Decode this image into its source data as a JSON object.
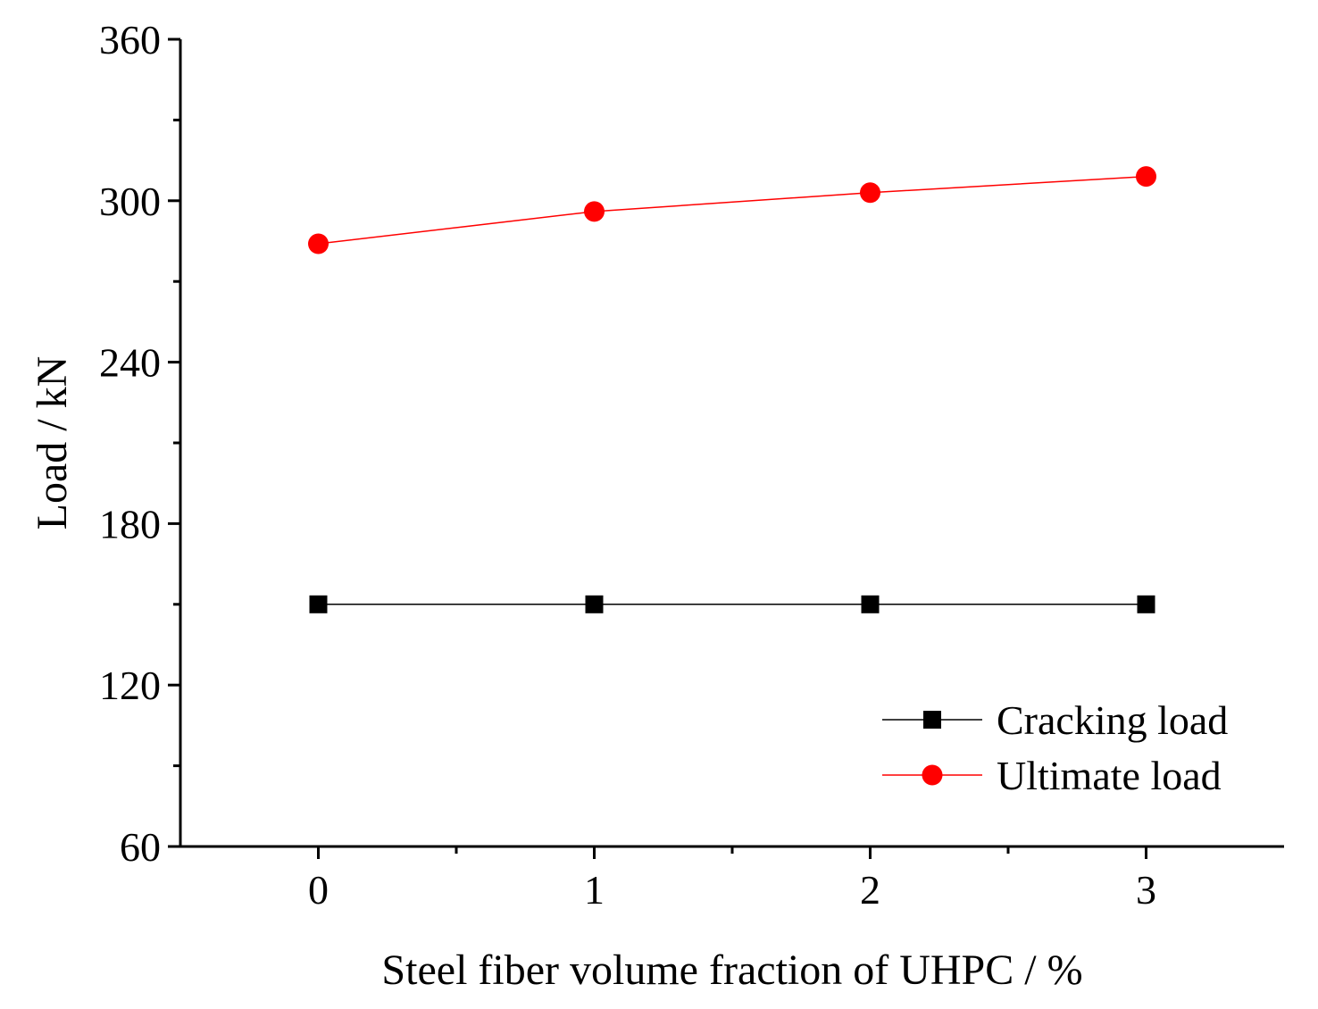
{
  "chart_data": {
    "type": "line",
    "title": "",
    "xlabel": "Steel fiber volume fraction of UHPC / %",
    "ylabel": "Load / kN",
    "x": [
      0,
      1,
      2,
      3
    ],
    "x_tick_labels": [
      "0",
      "1",
      "2",
      "3"
    ],
    "xlim": [
      -0.5,
      3.5
    ],
    "y_tick_labels": [
      "60",
      "120",
      "180",
      "240",
      "300",
      "360"
    ],
    "y_ticks": [
      60,
      120,
      180,
      240,
      300,
      360
    ],
    "ylim": [
      60,
      360
    ],
    "grid": false,
    "legend_position": "bottom-right",
    "series": [
      {
        "name": "Cracking load",
        "values": [
          150,
          150,
          150,
          150
        ],
        "color": "#000000",
        "marker": "square"
      },
      {
        "name": "Ultimate load",
        "values": [
          284,
          296,
          303,
          309
        ],
        "color": "#ff0000",
        "marker": "circle"
      }
    ]
  }
}
